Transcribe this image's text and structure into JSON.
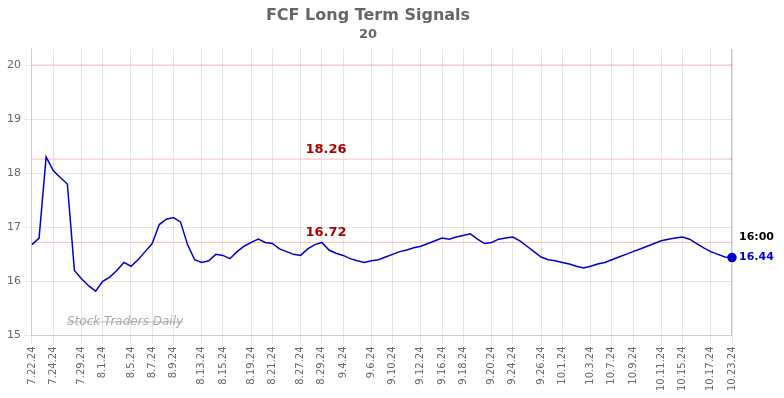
{
  "chart_data": {
    "type": "line",
    "title": "FCF Long Term Signals",
    "subtitle": "20",
    "categories": [
      "7.22.24",
      null,
      null,
      "7.24.24",
      null,
      null,
      null,
      "7.29.24",
      null,
      null,
      "8.1.24",
      null,
      null,
      null,
      "8.5.24",
      null,
      null,
      "8.7.24",
      null,
      null,
      "8.9.24",
      null,
      null,
      null,
      "8.13.24",
      null,
      null,
      "8.15.24",
      null,
      null,
      null,
      "8.19.24",
      null,
      null,
      "8.21.24",
      null,
      null,
      null,
      "8.27.24",
      null,
      null,
      "8.29.24",
      null,
      null,
      "9.4.24",
      null,
      null,
      null,
      "9.6.24",
      null,
      null,
      "9.10.24",
      null,
      null,
      null,
      "9.12.24",
      null,
      null,
      "9.16.24",
      null,
      null,
      "9.18.24",
      null,
      null,
      null,
      "9.20.24",
      null,
      null,
      "9.24.24",
      null,
      null,
      null,
      "9.26.24",
      null,
      null,
      "10.1.24",
      null,
      null,
      null,
      "10.3.24",
      null,
      null,
      "10.7.24",
      null,
      null,
      "10.9.24",
      null,
      null,
      null,
      "10.11.24",
      null,
      null,
      "10.15.24",
      null,
      null,
      null,
      "10.17.24",
      null,
      null,
      "10.23.24"
    ],
    "values": [
      16.68,
      16.8,
      18.3,
      18.05,
      17.92,
      17.8,
      16.2,
      16.05,
      15.92,
      15.82,
      16.0,
      16.08,
      16.2,
      16.35,
      16.28,
      16.4,
      16.55,
      16.7,
      17.05,
      17.15,
      17.18,
      17.1,
      16.68,
      16.4,
      16.35,
      16.38,
      16.5,
      16.48,
      16.42,
      16.55,
      16.65,
      16.72,
      16.78,
      16.72,
      16.7,
      16.6,
      16.55,
      16.5,
      16.48,
      16.6,
      16.68,
      16.72,
      16.58,
      16.52,
      16.48,
      16.42,
      16.38,
      16.35,
      16.38,
      16.4,
      16.45,
      16.5,
      16.55,
      16.58,
      16.62,
      16.65,
      16.7,
      16.75,
      16.8,
      16.78,
      16.82,
      16.85,
      16.88,
      16.78,
      16.7,
      16.72,
      16.78,
      16.8,
      16.82,
      16.75,
      16.65,
      16.55,
      16.45,
      16.4,
      16.38,
      16.35,
      16.32,
      16.28,
      16.25,
      16.28,
      16.32,
      16.35,
      16.4,
      16.45,
      16.5,
      16.55,
      16.6,
      16.65,
      16.7,
      16.75,
      16.78,
      16.8,
      16.82,
      16.78,
      16.7,
      16.62,
      16.55,
      16.5,
      16.45,
      16.44
    ],
    "color": "#0000cc",
    "ylim": [
      15,
      20.3
    ],
    "yticks": [
      15,
      16,
      17,
      18,
      19,
      20
    ],
    "grid": true,
    "reference_lines": [
      {
        "y": 20,
        "color": "#ffbbbb"
      },
      {
        "y": 18.26,
        "color": "#ffbbbb"
      },
      {
        "y": 16.72,
        "color": "#ffbbbb"
      }
    ],
    "annotations": [
      {
        "text": "18.26",
        "y": 18.26,
        "color": "#aa0000"
      },
      {
        "text": "16.72",
        "y": 16.72,
        "color": "#aa0000"
      }
    ],
    "end_labels": [
      {
        "text": "16:00",
        "color": "#000000"
      },
      {
        "text": "16.44",
        "y": 16.44,
        "color": "#0000cc"
      }
    ],
    "watermark": {
      "text": "Stock Traders Daily",
      "color": "#aaaaaa"
    }
  }
}
